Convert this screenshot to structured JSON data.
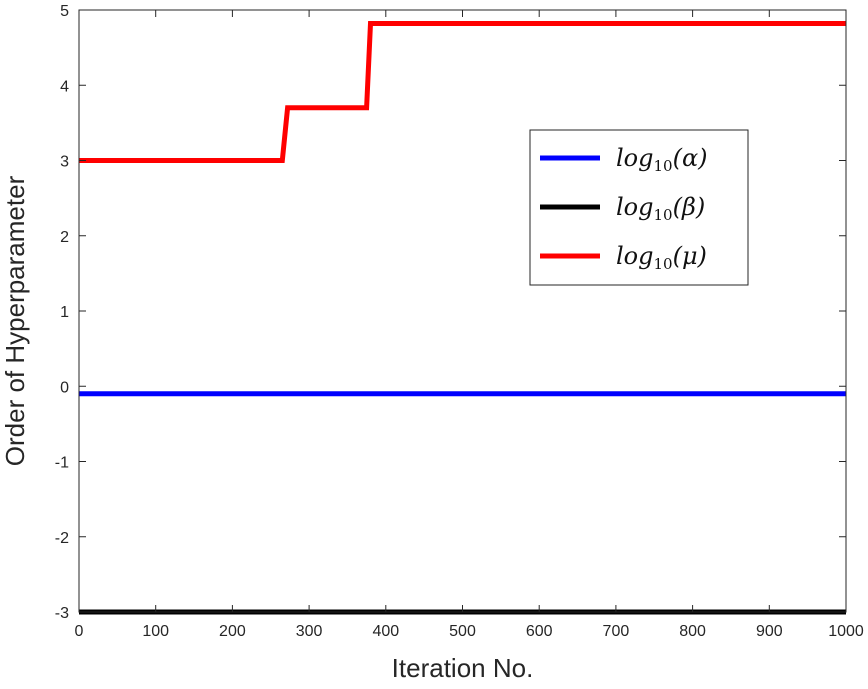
{
  "chart_data": {
    "type": "line",
    "title": "",
    "xlabel": "Iteration No.",
    "ylabel": "Order of Hyperparameter",
    "xlim": [
      0,
      1000
    ],
    "ylim": [
      -3,
      5
    ],
    "xticks": [
      0,
      100,
      200,
      300,
      400,
      500,
      600,
      700,
      800,
      900,
      1000
    ],
    "yticks": [
      -3,
      -2,
      -1,
      0,
      1,
      2,
      3,
      4,
      5
    ],
    "grid": false,
    "legend_position": "upper-right",
    "series": [
      {
        "name": "log10(α)",
        "legend_base": "log",
        "legend_sub": "10",
        "legend_arg": "(α)",
        "color": "#0000ff",
        "x": [
          0,
          1000
        ],
        "y": [
          -0.1,
          -0.1
        ]
      },
      {
        "name": "log10(β)",
        "legend_base": "log",
        "legend_sub": "10",
        "legend_arg": "(β)",
        "color": "#000000",
        "x": [
          0,
          1000
        ],
        "y": [
          -3.0,
          -3.0
        ]
      },
      {
        "name": "log10(μ)",
        "legend_base": "log",
        "legend_sub": "10",
        "legend_arg": "(μ)",
        "color": "#ff0000",
        "x": [
          0,
          265,
          272,
          375,
          380,
          1000
        ],
        "y": [
          3.0,
          3.0,
          3.7,
          3.7,
          4.82,
          4.82
        ]
      }
    ]
  }
}
